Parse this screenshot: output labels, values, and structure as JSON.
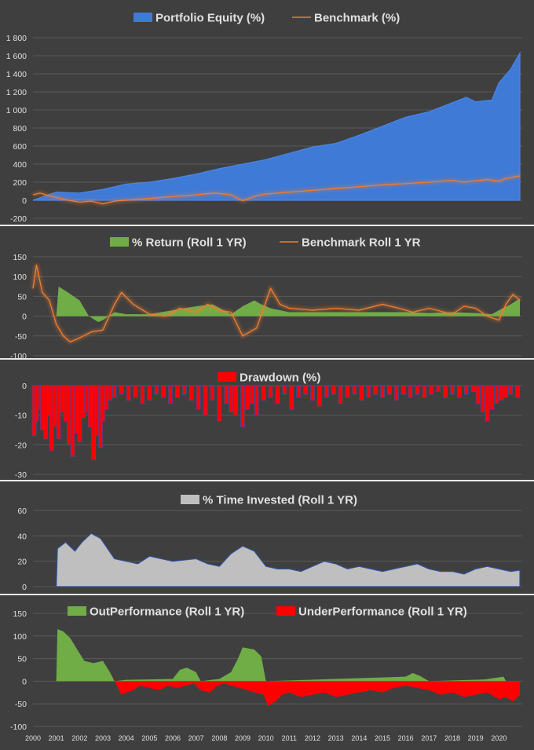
{
  "colors": {
    "background": "#3f3f3f",
    "grid": "#5a5a5a",
    "text": "#e0e0e0",
    "equity_fill": "#3f7ad6",
    "equity_edge": "#4a86e8",
    "benchmark_line": "#ed7d31",
    "return_fill": "#70ad47",
    "drawdown_fill": "#ff0000",
    "drawdown_edge": "#3a4fa8",
    "invested_fill": "#bfbfbf",
    "outperf_fill": "#70ad47",
    "underperf_fill": "#ff0000"
  },
  "x_axis": {
    "range": [
      2000,
      2021
    ],
    "tick_labels": [
      "2000",
      "2001",
      "2002",
      "2003",
      "2004",
      "2005",
      "2006",
      "2007",
      "2008",
      "2009",
      "2010",
      "2011",
      "2012",
      "2013",
      "2014",
      "2015",
      "2016",
      "2017",
      "2018",
      "2019",
      "2020"
    ]
  },
  "chart_data": [
    {
      "type": "area",
      "legend": [
        "Portfolio Equity (%)",
        "Benchmark (%)"
      ],
      "legend_position": "top",
      "ylim": [
        -200,
        1800
      ],
      "y_ticks": [
        -200,
        0,
        200,
        400,
        600,
        800,
        1000,
        1200,
        1400,
        1600,
        1800
      ],
      "y_tick_labels": [
        "-200",
        "0",
        "200",
        "400",
        "600",
        "800",
        "1 000",
        "1 200",
        "1 400",
        "1 600",
        "1 800"
      ],
      "grid": true,
      "series": [
        {
          "name": "Portfolio Equity (%)",
          "style": "area",
          "x": [
            2000,
            2001,
            2002,
            2003,
            2004,
            2005,
            2006,
            2007,
            2008,
            2009,
            2010,
            2011,
            2012,
            2013,
            2014,
            2015,
            2016,
            2017,
            2018,
            2018.6,
            2019,
            2019.7,
            2020,
            2020.5,
            2020.9
          ],
          "y": [
            0,
            90,
            80,
            120,
            180,
            200,
            240,
            290,
            350,
            400,
            450,
            520,
            590,
            630,
            720,
            820,
            920,
            980,
            1080,
            1140,
            1090,
            1110,
            1300,
            1450,
            1630
          ]
        },
        {
          "name": "Benchmark (%)",
          "style": "line",
          "x": [
            2000,
            2000.3,
            2000.7,
            2001,
            2001.5,
            2002,
            2002.5,
            2003,
            2003.5,
            2004,
            2005,
            2006,
            2007,
            2007.8,
            2008.5,
            2009,
            2009.6,
            2010,
            2011,
            2012,
            2013,
            2014,
            2015,
            2016,
            2017,
            2018,
            2018.5,
            2019,
            2019.5,
            2020,
            2020.3,
            2020.9
          ],
          "y": [
            60,
            80,
            50,
            30,
            0,
            -20,
            -10,
            -40,
            -10,
            0,
            20,
            40,
            60,
            80,
            60,
            -5,
            50,
            70,
            90,
            110,
            130,
            150,
            170,
            185,
            200,
            220,
            200,
            215,
            230,
            210,
            240,
            270
          ]
        }
      ]
    },
    {
      "type": "area",
      "legend": [
        "% Return (Roll 1  YR)",
        "Benchmark Roll 1 YR"
      ],
      "legend_position": "top",
      "ylim": [
        -100,
        150
      ],
      "y_ticks": [
        -100,
        -50,
        0,
        50,
        100,
        150
      ],
      "grid": true,
      "series": [
        {
          "name": "% Return (Roll 1  YR)",
          "style": "area",
          "x": [
            2001,
            2001.1,
            2001.5,
            2002,
            2002.4,
            2002.8,
            2003,
            2003.5,
            2004,
            2005,
            2006,
            2007,
            2007.7,
            2008.5,
            2009,
            2009.5,
            2009.8,
            2010.2,
            2011,
            2012,
            2013,
            2014,
            2015,
            2016,
            2017,
            2018,
            2019,
            2019.7,
            2020,
            2020.5,
            2020.9
          ],
          "y": [
            0,
            75,
            60,
            40,
            0,
            -15,
            -10,
            10,
            5,
            5,
            15,
            25,
            30,
            5,
            25,
            40,
            30,
            20,
            10,
            10,
            10,
            10,
            10,
            10,
            8,
            10,
            8,
            5,
            15,
            30,
            45
          ]
        },
        {
          "name": "Benchmark Roll 1 YR",
          "style": "line",
          "x": [
            2000,
            2000.15,
            2000.4,
            2000.7,
            2001,
            2001.3,
            2001.6,
            2002,
            2002.5,
            2003,
            2003.5,
            2003.8,
            2004.3,
            2005,
            2005.7,
            2006.3,
            2007,
            2007.5,
            2008,
            2008.5,
            2009,
            2009.3,
            2009.6,
            2009.9,
            2010.2,
            2010.6,
            2011,
            2012,
            2013,
            2014,
            2015,
            2015.7,
            2016.3,
            2017,
            2018,
            2018.5,
            2019,
            2019.5,
            2020,
            2020.3,
            2020.6,
            2020.9
          ],
          "y": [
            70,
            130,
            60,
            40,
            -20,
            -50,
            -65,
            -55,
            -40,
            -35,
            30,
            60,
            30,
            5,
            0,
            20,
            10,
            30,
            15,
            10,
            -50,
            -40,
            -30,
            20,
            70,
            30,
            20,
            15,
            20,
            15,
            30,
            20,
            10,
            20,
            5,
            25,
            20,
            0,
            -10,
            30,
            55,
            40
          ]
        }
      ]
    },
    {
      "type": "bar",
      "legend": [
        "Drawdown (%)"
      ],
      "legend_position": "top",
      "ylim": [
        -30,
        0
      ],
      "y_ticks": [
        -30,
        -20,
        -10,
        0
      ],
      "grid": true,
      "series": [
        {
          "name": "Drawdown (%)",
          "x": [
            2000.05,
            2000.15,
            2000.3,
            2000.4,
            2000.55,
            2000.7,
            2000.8,
            2000.95,
            2001.1,
            2001.25,
            2001.4,
            2001.55,
            2001.7,
            2001.85,
            2002.0,
            2002.15,
            2002.3,
            2002.45,
            2002.6,
            2002.75,
            2002.9,
            2003.0,
            2003.15,
            2003.3,
            2003.5,
            2003.8,
            2004.1,
            2004.4,
            2004.7,
            2005.0,
            2005.3,
            2005.6,
            2005.9,
            2006.2,
            2006.5,
            2006.8,
            2007.1,
            2007.4,
            2007.7,
            2008.0,
            2008.3,
            2008.5,
            2008.7,
            2009.0,
            2009.2,
            2009.4,
            2009.6,
            2009.9,
            2010.2,
            2010.5,
            2010.8,
            2011.1,
            2011.4,
            2011.7,
            2012.0,
            2012.3,
            2012.6,
            2012.9,
            2013.2,
            2013.5,
            2013.8,
            2014.1,
            2014.4,
            2014.7,
            2015.0,
            2015.3,
            2015.6,
            2015.9,
            2016.2,
            2016.5,
            2016.8,
            2017.1,
            2017.4,
            2017.7,
            2018.0,
            2018.3,
            2018.6,
            2018.9,
            2019.1,
            2019.3,
            2019.5,
            2019.7,
            2019.9,
            2020.1,
            2020.3,
            2020.5,
            2020.8
          ],
          "y": [
            -17,
            -12,
            -8,
            -15,
            -18,
            -10,
            -22,
            -14,
            -18,
            -9,
            -12,
            -20,
            -24,
            -16,
            -19,
            -11,
            -9,
            -14,
            -25,
            -17,
            -21,
            -12,
            -8,
            -5,
            -4,
            -3,
            -5,
            -4,
            -6,
            -5,
            -3,
            -4,
            -6,
            -4,
            -3,
            -5,
            -8,
            -10,
            -5,
            -12,
            -6,
            -9,
            -10,
            -14,
            -8,
            -6,
            -10,
            -5,
            -4,
            -6,
            -3,
            -8,
            -4,
            -3,
            -5,
            -7,
            -4,
            -3,
            -6,
            -4,
            -3,
            -5,
            -4,
            -3,
            -4,
            -3,
            -5,
            -3,
            -4,
            -3,
            -4,
            -3,
            -2,
            -4,
            -3,
            -4,
            -3,
            -2,
            -6,
            -9,
            -12,
            -8,
            -6,
            -5,
            -4,
            -3,
            -4
          ]
        }
      ]
    },
    {
      "type": "area",
      "legend": [
        "% Time Invested (Roll 1 YR)"
      ],
      "legend_position": "top",
      "ylim": [
        0,
        60
      ],
      "y_ticks": [
        0,
        20,
        40,
        60
      ],
      "grid": true,
      "series": [
        {
          "name": "% Time Invested (Roll 1 YR)",
          "x": [
            2001,
            2001.05,
            2001.4,
            2001.8,
            2002.1,
            2002.5,
            2002.9,
            2003.2,
            2003.5,
            2004,
            2004.5,
            2005,
            2005.5,
            2006,
            2006.5,
            2007,
            2007.5,
            2008,
            2008.5,
            2009,
            2009.5,
            2010,
            2010.5,
            2011,
            2011.5,
            2012,
            2012.5,
            2013,
            2013.5,
            2014,
            2014.5,
            2015,
            2015.5,
            2016,
            2016.5,
            2017,
            2017.5,
            2018,
            2018.5,
            2019,
            2019.5,
            2020,
            2020.5,
            2020.9
          ],
          "y": [
            0,
            30,
            35,
            28,
            35,
            42,
            38,
            30,
            22,
            20,
            18,
            24,
            22,
            20,
            21,
            22,
            18,
            16,
            26,
            32,
            28,
            16,
            14,
            14,
            12,
            16,
            20,
            18,
            14,
            16,
            14,
            12,
            14,
            16,
            18,
            14,
            12,
            12,
            10,
            14,
            16,
            14,
            12,
            13
          ]
        }
      ]
    },
    {
      "type": "area",
      "legend": [
        "OutPerformance (Roll 1 YR)",
        "UnderPerformance (Roll 1 YR)"
      ],
      "legend_position": "top",
      "ylim": [
        -100,
        150
      ],
      "y_ticks": [
        -100,
        -50,
        0,
        50,
        100,
        150
      ],
      "grid": true,
      "series": [
        {
          "name": "OutPerformance (Roll 1 YR)",
          "x": [
            2001,
            2001.05,
            2001.3,
            2001.6,
            2001.9,
            2002.2,
            2002.6,
            2003,
            2003.3,
            2003.5,
            2004,
            2005,
            2006,
            2006.3,
            2006.6,
            2007,
            2007.2,
            2008,
            2008.5,
            2008.8,
            2009,
            2009.5,
            2009.8,
            2010,
            2016,
            2016.3,
            2016.6,
            2017,
            2019.4,
            2020.2,
            2020.3
          ],
          "y": [
            0,
            115,
            110,
            95,
            70,
            45,
            40,
            45,
            20,
            0,
            3,
            4,
            5,
            25,
            30,
            20,
            0,
            5,
            20,
            50,
            75,
            70,
            55,
            0,
            10,
            18,
            12,
            0,
            4,
            10,
            0
          ]
        },
        {
          "name": "UnderPerformance (Roll 1 YR)",
          "x": [
            2003.5,
            2003.8,
            2004,
            2004.3,
            2004.6,
            2005,
            2005.4,
            2005.8,
            2006.2,
            2006.9,
            2007.2,
            2007.6,
            2007.9,
            2008.2,
            2009.9,
            2010.1,
            2010.4,
            2010.7,
            2011,
            2011.5,
            2012,
            2012.5,
            2013,
            2013.5,
            2014,
            2014.5,
            2015,
            2015.5,
            2016,
            2016.5,
            2017,
            2017.5,
            2018,
            2018.5,
            2019,
            2019.5,
            2020,
            2020.3,
            2020.6,
            2020.9
          ],
          "y": [
            0,
            -30,
            -25,
            -20,
            -10,
            -15,
            -20,
            -10,
            -15,
            -5,
            -20,
            -25,
            -10,
            -5,
            -30,
            -55,
            -45,
            -30,
            -25,
            -35,
            -30,
            -25,
            -35,
            -30,
            -25,
            -20,
            -25,
            -15,
            -10,
            -15,
            -20,
            -30,
            -25,
            -35,
            -30,
            -25,
            -40,
            -35,
            -45,
            -30
          ]
        }
      ]
    }
  ]
}
